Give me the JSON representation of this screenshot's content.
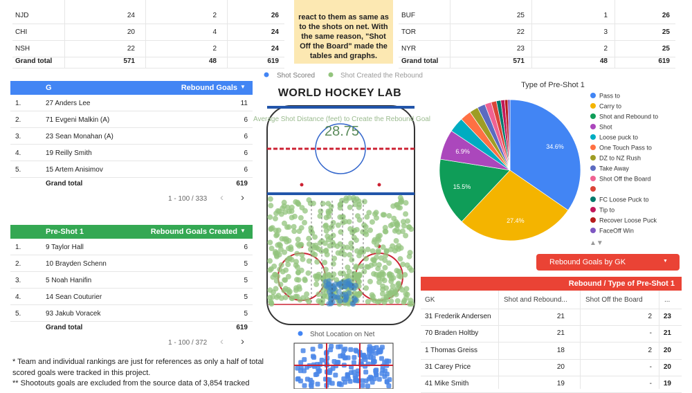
{
  "team_table_left": {
    "rows": [
      [
        "NJD",
        24,
        2,
        26
      ],
      [
        "CHI",
        20,
        4,
        24
      ],
      [
        "NSH",
        22,
        2,
        24
      ]
    ],
    "total": [
      "Grand total",
      571,
      48,
      619
    ]
  },
  "team_table_right": {
    "rows": [
      [
        "BUF",
        25,
        1,
        26
      ],
      [
        "TOR",
        22,
        3,
        25
      ],
      [
        "NYR",
        23,
        2,
        25
      ]
    ],
    "total": [
      "Grand total",
      571,
      48,
      619
    ]
  },
  "note": "react to them as same as to the shots on net. With the same reason, \"Shot Off the Board\" made the tables and graphs.",
  "shot_legend": [
    "Shot Scored",
    "Shot Created the Rebound"
  ],
  "logo": "WORLD HOCKEY LAB",
  "avg_distance": {
    "label": "Average Shot Distance (feet) to Create the Rebound Goal",
    "value": 28.75
  },
  "scorer_table": {
    "headers": [
      "G",
      "Rebound Goals"
    ],
    "rows": [
      [
        "1.",
        "27 Anders Lee",
        11
      ],
      [
        "2.",
        "71 Evgeni Malkin (A)",
        6
      ],
      [
        "3.",
        "23 Sean Monahan (A)",
        6
      ],
      [
        "4.",
        "19 Reilly Smith",
        6
      ],
      [
        "5.",
        "15 Artem Anisimov",
        6
      ]
    ],
    "total_label": "Grand total",
    "total": 619,
    "pagination": "1 - 100 / 333"
  },
  "preshot_table": {
    "headers": [
      "Pre-Shot 1",
      "Rebound Goals Created"
    ],
    "rows": [
      [
        "1.",
        "9 Taylor Hall",
        6
      ],
      [
        "2.",
        "10 Brayden Schenn",
        5
      ],
      [
        "3.",
        "5 Noah Hanifin",
        5
      ],
      [
        "4.",
        "14 Sean Couturier",
        5
      ],
      [
        "5.",
        "93 Jakub Voracek",
        5
      ]
    ],
    "total_label": "Grand total",
    "total": 619,
    "pagination": "1 - 100 / 372"
  },
  "notes": [
    "* Team and individual rankings are just for references as only a half of total scored goals were tracked in this project.",
    "** Shootouts goals are excluded from the source data of 3,854 tracked"
  ],
  "net_legend": "Shot Location on Net",
  "chart_data": {
    "type": "pie",
    "title": "Type of Pre-Shot 1",
    "categories": [
      "Pass to",
      "Carry to",
      "Shot and Rebound to",
      "Shot",
      "Loose puck to",
      "One Touch Pass to",
      "DZ to NZ Rush",
      "Take Away",
      "Shot Off the Board",
      null,
      "FC Loose Puck to",
      "Tip to",
      "Recover Loose Puck",
      "FaceOff Win"
    ],
    "values": [
      34.6,
      27.4,
      15.5,
      6.9,
      3.5,
      2.5,
      2,
      1.8,
      1.5,
      1.2,
      1,
      0.9,
      0.7,
      0.5
    ],
    "value_labels": [
      "34.6%",
      "27.4%",
      "15.5%",
      "6.9%",
      null,
      null,
      null,
      null,
      null,
      null,
      null,
      null,
      null,
      null
    ],
    "colors": [
      "#4285f4",
      "#f4b400",
      "#0f9d58",
      "#ab47bc",
      "#00acc1",
      "#ff7043",
      "#9e9d24",
      "#5c6bc0",
      "#f06292",
      "#db4437",
      "#00796b",
      "#c2185b",
      "#b71c1c",
      "#7e57c2"
    ]
  },
  "gk_button": "Rebound Goals by GK",
  "gk_table": {
    "title": "Rebound / Type of Pre-Shot 1",
    "headers": [
      "GK",
      "Shot and Rebound...",
      "Shot Off the Board",
      "..."
    ],
    "rows": [
      [
        "31 Frederik Andersen",
        21,
        2,
        23
      ],
      [
        "70 Braden Holtby",
        21,
        "-",
        21
      ],
      [
        "1 Thomas Greiss",
        18,
        2,
        20
      ],
      [
        "31 Carey Price",
        20,
        "-",
        20
      ],
      [
        "41 Mike Smith",
        19,
        "-",
        19
      ]
    ]
  }
}
